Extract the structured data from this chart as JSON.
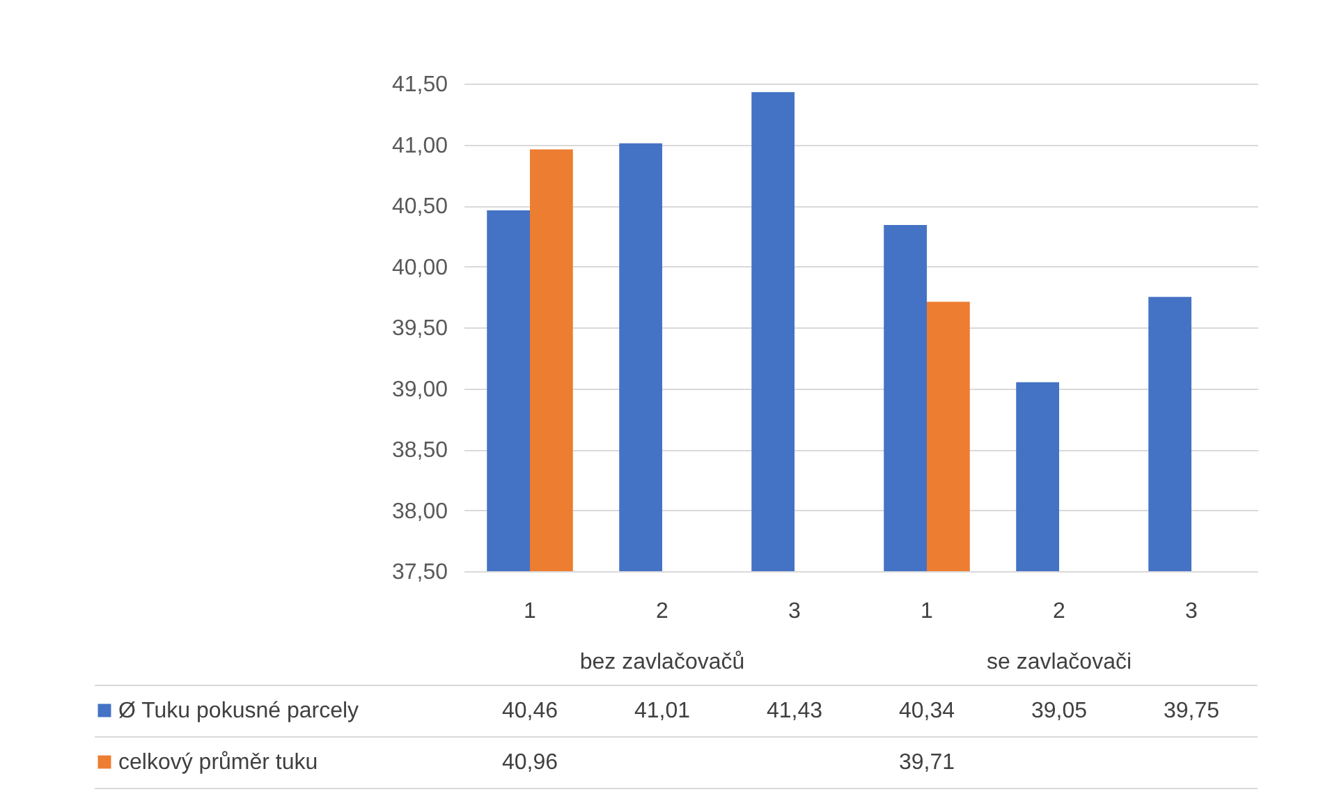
{
  "chart_data": {
    "type": "bar",
    "categories": [
      "1",
      "2",
      "3",
      "1",
      "2",
      "3"
    ],
    "annotations": [
      "bez zavlačovačů",
      "se zavlačovači"
    ],
    "series": [
      {
        "name": "Ø Tuku pokusné parcely",
        "color": "#4472c4",
        "values": [
          40.46,
          41.01,
          41.43,
          40.34,
          39.05,
          39.75
        ],
        "value_labels": [
          "40,46",
          "41,01",
          "41,43",
          "40,34",
          "39,05",
          "39,75"
        ]
      },
      {
        "name": "celkový průměr tuku",
        "color": "#ed7d31",
        "values": [
          40.96,
          null,
          null,
          39.71,
          null,
          null
        ],
        "value_labels": [
          "40,96",
          null,
          null,
          "39,71",
          null,
          null
        ]
      }
    ],
    "ylim": [
      37.5,
      41.5
    ],
    "yticks": [
      {
        "value": 37.5,
        "label": "37,50"
      },
      {
        "value": 38,
        "label": "38,00"
      },
      {
        "value": 38.5,
        "label": "38,50"
      },
      {
        "value": 39,
        "label": "39,00"
      },
      {
        "value": 39.5,
        "label": "39,50"
      },
      {
        "value": 40,
        "label": "40,00"
      },
      {
        "value": 40.5,
        "label": "40,50"
      },
      {
        "value": 41,
        "label": "41,00"
      },
      {
        "value": 41.5,
        "label": "41,50"
      }
    ],
    "grid": "y",
    "legend": "bottom",
    "data_labels": true
  }
}
